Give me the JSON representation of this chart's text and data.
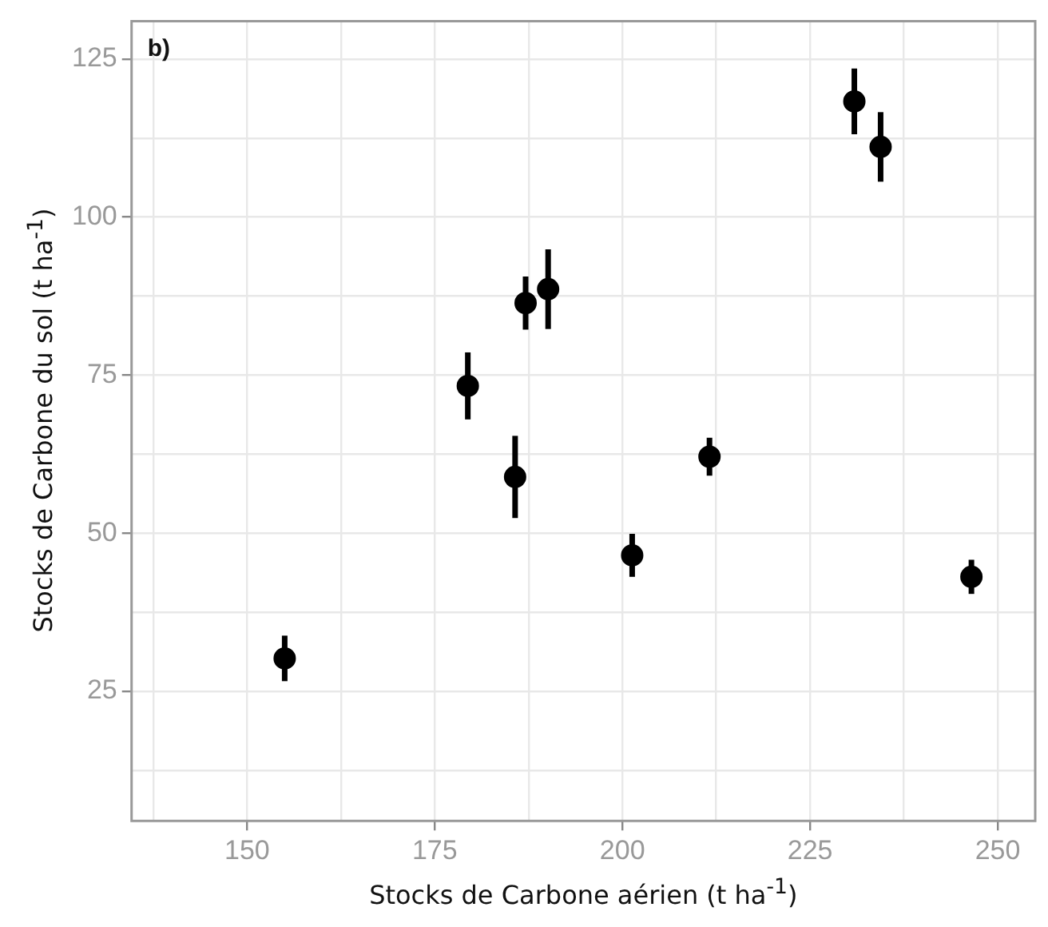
{
  "chart_data": {
    "type": "scatter",
    "xlabel": "Stocks de Carbone aérien (t ha$^{-1}$)",
    "ylabel": "Stocks de Carbone du sol (t ha$^{-1}$)",
    "annotations": [
      "b)"
    ],
    "x": [
      155,
      179.4,
      185.7,
      187.1,
      190.1,
      201.3,
      211.6,
      230.9,
      234.4,
      246.5
    ],
    "series": [
      {
        "color": "#000000",
        "values": [
          30.2,
          73.3,
          58.9,
          86.4,
          88.6,
          46.5,
          62.1,
          118.3,
          111.1,
          43.1
        ],
        "errors": [
          3.6,
          5.3,
          6.5,
          4.2,
          6.3,
          3.4,
          3,
          5.2,
          5.5,
          2.7
        ]
      }
    ],
    "marker": "circle",
    "xlim": [
      134.6,
      255
    ],
    "ylim": [
      4.5,
      131
    ],
    "xticks": [
      {
        "value": 137.5,
        "label": null
      },
      150,
      {
        "value": 162.5,
        "label": null
      },
      175,
      {
        "value": 187.5,
        "label": null
      },
      200,
      {
        "value": 212.5,
        "label": null
      },
      225,
      {
        "value": 237.5,
        "label": null
      },
      250
    ],
    "yticks": [
      {
        "value": 12.5,
        "label": null
      },
      25,
      {
        "value": 37.5,
        "label": null
      },
      50,
      {
        "value": 62.5,
        "label": null
      },
      75,
      {
        "value": 87.5,
        "label": null
      },
      100,
      {
        "value": 112.5,
        "label": null
      },
      125
    ],
    "grid": true,
    "legend": false
  }
}
